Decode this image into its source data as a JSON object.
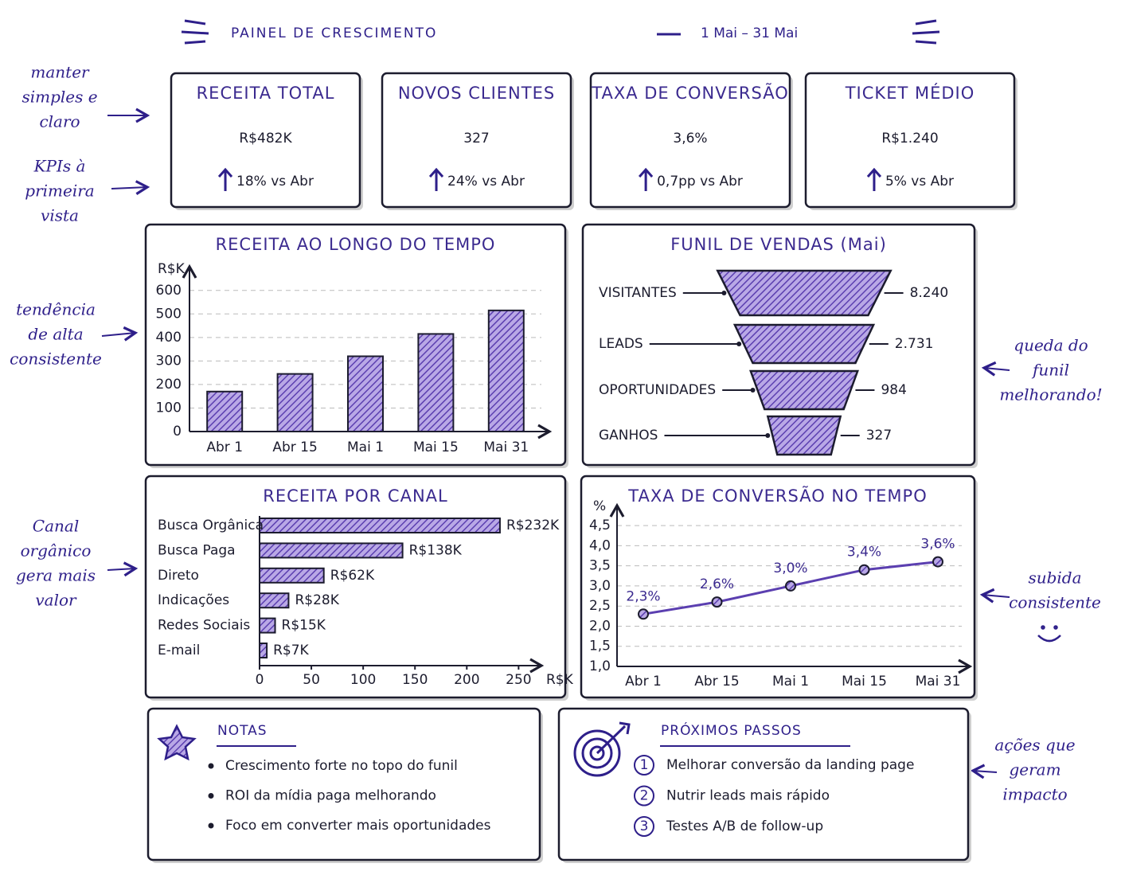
{
  "title": "PAINEL DE CRESCIMENTO",
  "subtitle": "1 Mai – 31 Mai",
  "kpis": [
    {
      "label": "RECEITA TOTAL",
      "value": "R$482K",
      "change": "18% vs Abr"
    },
    {
      "label": "NOVOS CLIENTES",
      "value": "327",
      "change": "24% vs Abr"
    },
    {
      "label": "TAXA DE CONVERSÃO",
      "value": "3,6%",
      "change": "0,7pp vs Abr"
    },
    {
      "label": "TICKET MÉDIO",
      "value": "R$1.240",
      "change": "5% vs Abr"
    }
  ],
  "annotations": [
    [
      "manter",
      "simples e",
      "claro"
    ],
    [
      "KPIs à",
      "primeira",
      "vista"
    ],
    [
      "tendência",
      "de alta",
      "consistente"
    ],
    [
      "Canal",
      "orgânico",
      "gera mais",
      "valor"
    ],
    [
      "queda do",
      "funil",
      "melhorando!"
    ],
    [
      "subida",
      "consistente"
    ],
    [
      "ações que",
      "geram",
      "impacto"
    ]
  ],
  "chart_data": [
    {
      "type": "bar",
      "title": "RECEITA AO LONGO DO TEMPO",
      "y_label": "R$K",
      "categories": [
        "Abr 1",
        "Abr 15",
        "Mai 1",
        "Mai 15",
        "Mai 31"
      ],
      "values": [
        170,
        245,
        320,
        415,
        515
      ],
      "color": "#5b3fb0",
      "ylim": [
        0,
        650
      ],
      "yticks": [
        0,
        100,
        200,
        300,
        400,
        500,
        600
      ],
      "grid": true
    },
    {
      "type": "funnel",
      "title": "FUNIL DE VENDAS (Mai)",
      "categories": [
        "VISITANTES",
        "LEADS",
        "OPORTUNIDADES",
        "GANHOS"
      ],
      "values": [
        8240,
        2731,
        984,
        327
      ],
      "value_labels": [
        "8.240",
        "2.731",
        "984",
        "327"
      ],
      "color": "#5b3fb0"
    },
    {
      "type": "hbar",
      "title": "RECEITA POR CANAL",
      "x_label": "R$K",
      "categories": [
        "Busca Orgânica",
        "Busca Paga",
        "Direto",
        "Indicações",
        "Redes Sociais",
        "E-mail"
      ],
      "values": [
        232,
        138,
        62,
        28,
        15,
        7
      ],
      "value_labels": [
        "R$232K",
        "R$138K",
        "R$62K",
        "R$28K",
        "R$15K",
        "R$7K"
      ],
      "color": "#5b3fb0",
      "xlim": [
        0,
        272
      ],
      "xticks": [
        0,
        50,
        100,
        150,
        200,
        250
      ]
    },
    {
      "type": "line",
      "title": "TAXA DE CONVERSÃO NO TEMPO",
      "y_label": "%",
      "categories": [
        "Abr 1",
        "Abr 15",
        "Mai 1",
        "Mai 15",
        "Mai 31"
      ],
      "values": [
        2.3,
        2.6,
        3.0,
        3.4,
        3.6
      ],
      "value_labels": [
        "2,3%",
        "2,6%",
        "3,0%",
        "3,4%",
        "3,6%"
      ],
      "color": "#5b3fb0",
      "ylim": [
        1.0,
        4.7
      ],
      "yticks": [
        {
          "value": 1.0,
          "label": "1,0"
        },
        {
          "value": 1.5,
          "label": "1,5"
        },
        {
          "value": 2.0,
          "label": "2,0"
        },
        {
          "value": 2.5,
          "label": "2,5"
        },
        {
          "value": 3.0,
          "label": "3,0"
        },
        {
          "value": 3.5,
          "label": "3,5"
        },
        {
          "value": 4.0,
          "label": "4,0"
        },
        {
          "value": 4.5,
          "label": "4,5"
        }
      ],
      "grid": true
    }
  ],
  "notes": {
    "title": "NOTAS",
    "items": [
      "Crescimento forte no topo do funil",
      "ROI da mídia paga melhorando",
      "Foco em converter mais oportunidades"
    ]
  },
  "next_steps": {
    "title": "PRÓXIMOS PASSOS",
    "items": [
      {
        "number": 1,
        "text": "Melhorar conversão da landing page"
      },
      {
        "number": 2,
        "text": "Nutrir leads mais rápido"
      },
      {
        "number": 3,
        "text": "Testes A/B de follow-up"
      }
    ]
  }
}
